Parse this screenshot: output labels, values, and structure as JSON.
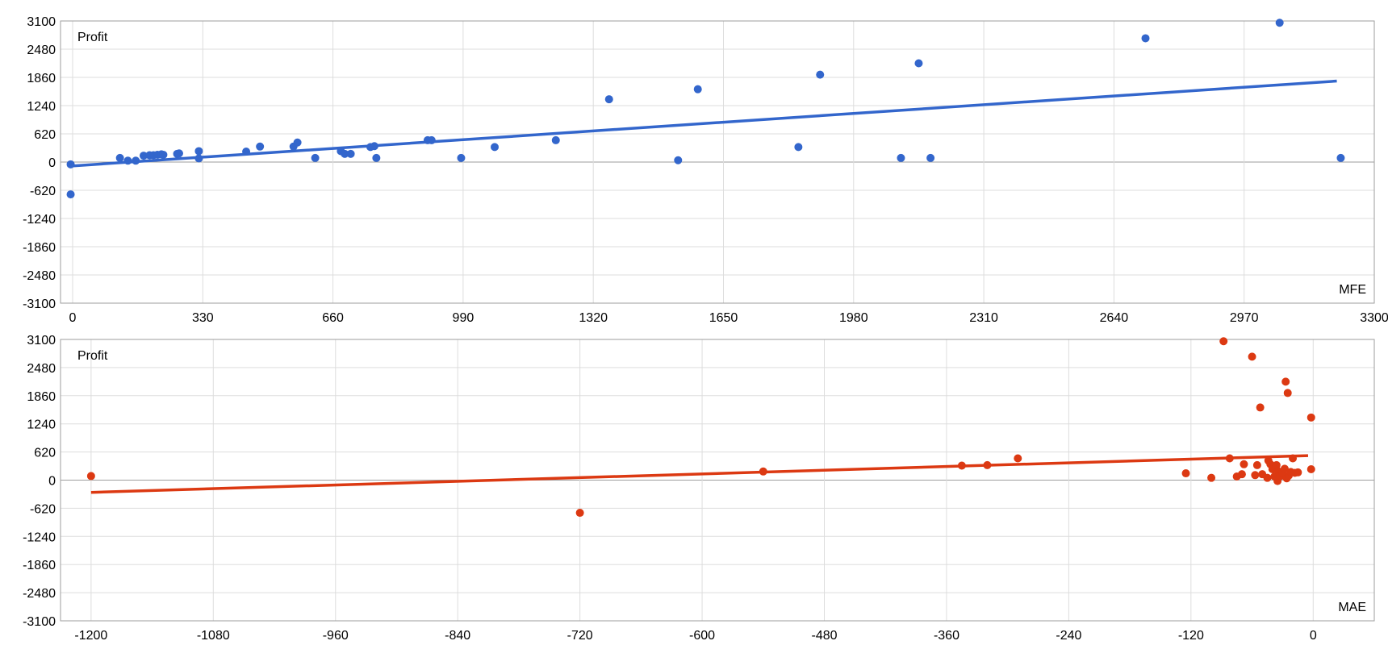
{
  "chart_data": [
    {
      "type": "scatter",
      "ylabel": "Profit",
      "xlabel": "MFE",
      "xlim": [
        0,
        3300
      ],
      "ylim": [
        -3100,
        3100
      ],
      "xticks": [
        0,
        330,
        660,
        990,
        1320,
        1650,
        1980,
        2310,
        2640,
        2970,
        3300
      ],
      "yticks": [
        3100,
        2480,
        1860,
        1240,
        620,
        0,
        -620,
        -1240,
        -1860,
        -2480,
        -3100
      ],
      "grid": true,
      "color": "#3366cc",
      "trendline": {
        "x": [
          -10,
          3205
        ],
        "y": [
          -90,
          1780
        ]
      },
      "points": [
        [
          -5,
          -50
        ],
        [
          -5,
          -710
        ],
        [
          120,
          90
        ],
        [
          140,
          30
        ],
        [
          160,
          30
        ],
        [
          180,
          140
        ],
        [
          195,
          150
        ],
        [
          205,
          150
        ],
        [
          215,
          160
        ],
        [
          225,
          170
        ],
        [
          230,
          160
        ],
        [
          265,
          180
        ],
        [
          270,
          190
        ],
        [
          320,
          80
        ],
        [
          320,
          240
        ],
        [
          440,
          230
        ],
        [
          475,
          340
        ],
        [
          560,
          340
        ],
        [
          570,
          430
        ],
        [
          615,
          90
        ],
        [
          680,
          240
        ],
        [
          690,
          180
        ],
        [
          705,
          180
        ],
        [
          755,
          330
        ],
        [
          765,
          350
        ],
        [
          770,
          90
        ],
        [
          900,
          480
        ],
        [
          910,
          480
        ],
        [
          985,
          90
        ],
        [
          1070,
          330
        ],
        [
          1225,
          480
        ],
        [
          1360,
          1380
        ],
        [
          1535,
          40
        ],
        [
          1585,
          1600
        ],
        [
          1840,
          330
        ],
        [
          1895,
          1920
        ],
        [
          2100,
          90
        ],
        [
          2145,
          2170
        ],
        [
          2175,
          90
        ],
        [
          2720,
          2720
        ],
        [
          3060,
          3060
        ],
        [
          3215,
          90
        ]
      ]
    },
    {
      "type": "scatter",
      "ylabel": "Profit",
      "xlabel": "MAE",
      "xlim": [
        -1230,
        60
      ],
      "ylim": [
        -3100,
        3100
      ],
      "xticks": [
        -1200,
        -1080,
        -960,
        -840,
        -720,
        -600,
        -480,
        -360,
        -240,
        -120,
        0
      ],
      "yticks": [
        3100,
        2480,
        1860,
        1240,
        620,
        0,
        -620,
        -1240,
        -1860,
        -2480,
        -3100
      ],
      "grid": true,
      "color": "#dc3912",
      "trendline": {
        "x": [
          -1200,
          -5
        ],
        "y": [
          -270,
          540
        ]
      },
      "points": [
        [
          -1200,
          90
        ],
        [
          -720,
          -720
        ],
        [
          -540,
          190
        ],
        [
          -345,
          320
        ],
        [
          -320,
          330
        ],
        [
          -290,
          480
        ],
        [
          -125,
          150
        ],
        [
          -100,
          50
        ],
        [
          -88,
          3060
        ],
        [
          -82,
          480
        ],
        [
          -75,
          80
        ],
        [
          -70,
          130
        ],
        [
          -68,
          350
        ],
        [
          -60,
          2720
        ],
        [
          -57,
          110
        ],
        [
          -55,
          330
        ],
        [
          -52,
          1600
        ],
        [
          -50,
          130
        ],
        [
          -45,
          50
        ],
        [
          -44,
          430
        ],
        [
          -42,
          350
        ],
        [
          -40,
          240
        ],
        [
          -38,
          80
        ],
        [
          -36,
          330
        ],
        [
          -35,
          -20
        ],
        [
          -34,
          190
        ],
        [
          -32,
          90
        ],
        [
          -30,
          150
        ],
        [
          -28,
          250
        ],
        [
          -27,
          2170
        ],
        [
          -26,
          40
        ],
        [
          -25,
          1920
        ],
        [
          -24,
          100
        ],
        [
          -22,
          180
        ],
        [
          -20,
          480
        ],
        [
          -18,
          160
        ],
        [
          -15,
          170
        ],
        [
          -2,
          1380
        ],
        [
          -2,
          240
        ]
      ]
    }
  ]
}
